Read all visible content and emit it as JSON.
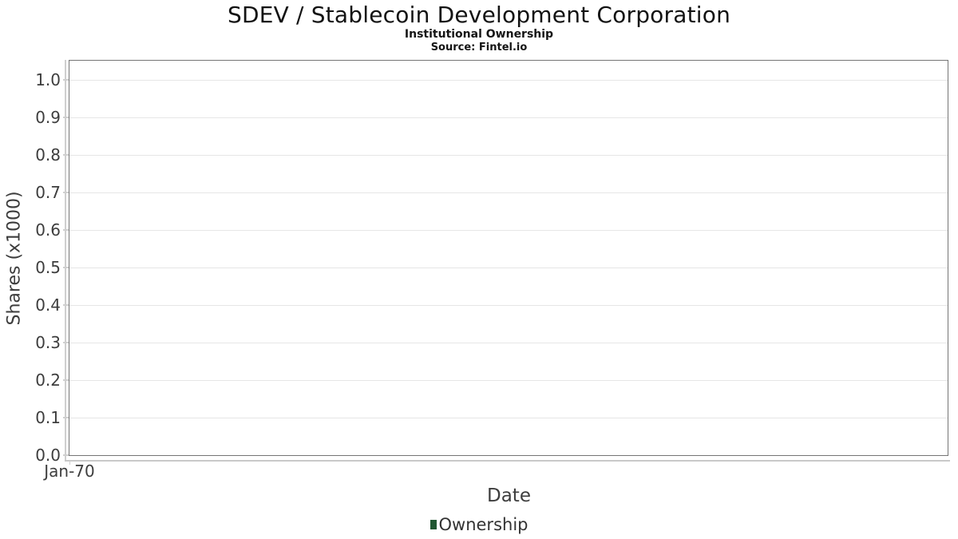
{
  "chart_data": {
    "type": "line",
    "title": "SDEV / Stablecoin Development Corporation",
    "subtitle": "Institutional Ownership",
    "source": "Source: Fintel.io",
    "xlabel": "Date",
    "ylabel": "Shares (x1000)",
    "xticks": [
      "Jan-70"
    ],
    "yticks": [
      "0.0",
      "0.1",
      "0.2",
      "0.3",
      "0.4",
      "0.5",
      "0.6",
      "0.7",
      "0.8",
      "0.9",
      "1.0"
    ],
    "ylim": [
      0.0,
      1.05
    ],
    "xlim_label": "Jan-70",
    "grid": true,
    "plot_empty": true,
    "legend": {
      "position": "bottom-center",
      "entries": [
        {
          "label": "Ownership",
          "color": "#215732"
        }
      ]
    },
    "series": [
      {
        "name": "Ownership",
        "x": [],
        "values": []
      }
    ],
    "colors": {
      "title_text": "#131313",
      "axis_text": "#3d3d3d",
      "legend_text": "#333333",
      "gridline": "#e6e6e6",
      "plot_border": "#757575",
      "axis_line": "#cfcfcf",
      "series_ownership": "#215732",
      "background": "#ffffff"
    }
  }
}
